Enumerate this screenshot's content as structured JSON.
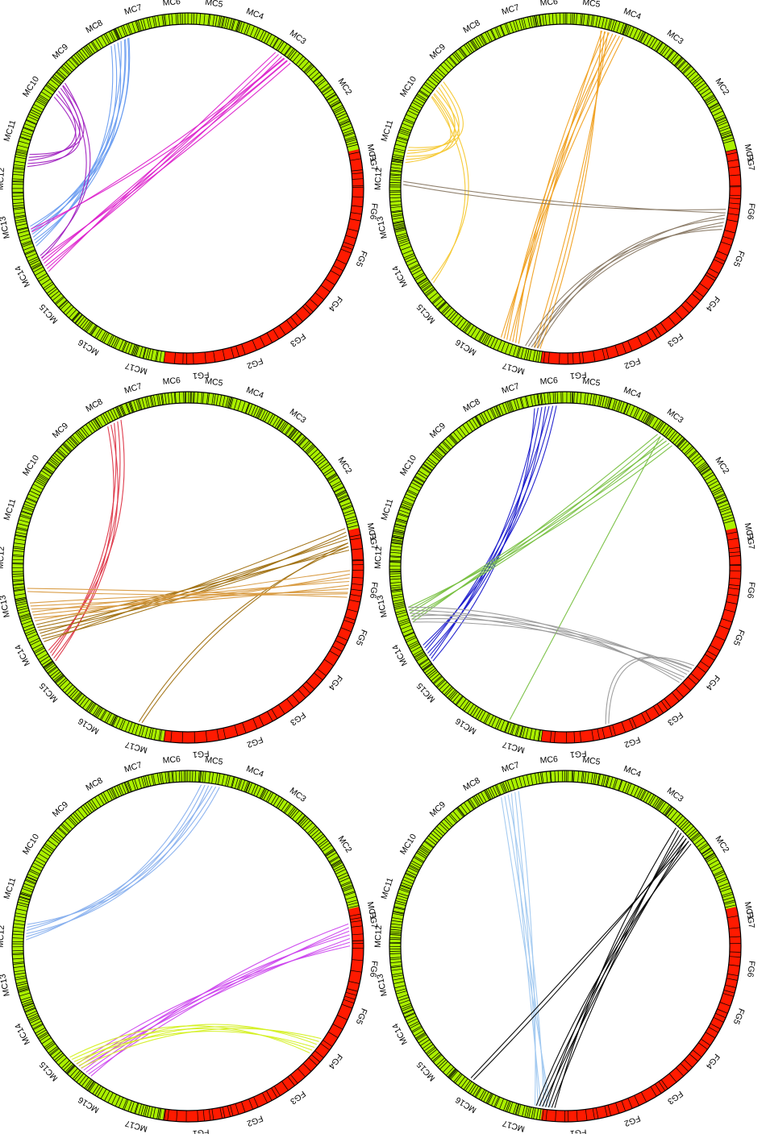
{
  "chromosomes": {
    "mc": [
      "MC1",
      "MC2",
      "MC3",
      "MC4",
      "MC5",
      "MC6",
      "MC7",
      "MC8",
      "MC9",
      "MC10",
      "MC11",
      "MC12",
      "MC13",
      "MC14",
      "MC15",
      "MC16",
      "MC17"
    ],
    "fg": [
      "FG1",
      "FG2",
      "FG3",
      "FG4",
      "FG5",
      "FG6",
      "FG7"
    ]
  },
  "colors": {
    "mc_segment": "#aaf000",
    "fg_segment": "#ff1a00",
    "tick": "#000000",
    "ring_outline": "#000000"
  },
  "panels": [
    {
      "id": "panel-1",
      "links": [
        {
          "color": "#6a9df0",
          "from": 115,
          "to": 198,
          "n": 6
        },
        {
          "color": "#6a9df0",
          "from": 112,
          "to": 194,
          "n": 2
        },
        {
          "color": "#dd22cc",
          "from": 54,
          "to": 208,
          "n": 6
        },
        {
          "color": "#dd22cc",
          "from": 53,
          "to": 195,
          "n": 2
        },
        {
          "color": "#a020c0",
          "from": 143,
          "to": 170,
          "n": 5
        },
        {
          "color": "#a020c0",
          "from": 140,
          "to": 205,
          "n": 2
        }
      ]
    },
    {
      "id": "panel-2",
      "links": [
        {
          "color": "#f0a020",
          "from": 73,
          "to": 250,
          "n": 7
        },
        {
          "color": "#f0a020",
          "from": 76,
          "to": 260,
          "n": 3
        },
        {
          "color": "#f5c830",
          "from": 142,
          "to": 168,
          "n": 6
        },
        {
          "color": "#f5c830",
          "from": 145,
          "to": 215,
          "n": 2
        },
        {
          "color": "#8a7a66",
          "from": 348,
          "to": 258,
          "n": 5
        },
        {
          "color": "#8a7a66",
          "from": 352,
          "to": 178,
          "n": 2
        }
      ]
    },
    {
      "id": "panel-3",
      "links": [
        {
          "color": "#dd3344",
          "from": 117,
          "to": 213,
          "n": 5
        },
        {
          "color": "#a07010",
          "from": 10,
          "to": 204,
          "n": 7
        },
        {
          "color": "#a07010",
          "from": 8,
          "to": 253,
          "n": 2
        },
        {
          "color": "#d89a40",
          "from": 355,
          "to": 196,
          "n": 7
        },
        {
          "color": "#d89a40",
          "from": 350,
          "to": 188,
          "n": 2
        }
      ]
    },
    {
      "id": "panel-4",
      "links": [
        {
          "color": "#1a1acc",
          "from": 97,
          "to": 212,
          "n": 7
        },
        {
          "color": "#77c040",
          "from": 52,
          "to": 197,
          "n": 6
        },
        {
          "color": "#77c040",
          "from": 54,
          "to": 250,
          "n": 1
        },
        {
          "color": "#999999",
          "from": 318,
          "to": 197,
          "n": 6
        },
        {
          "color": "#999999",
          "from": 322,
          "to": 285,
          "n": 2
        }
      ]
    },
    {
      "id": "panel-5",
      "links": [
        {
          "color": "#88b0ee",
          "from": 82,
          "to": 175,
          "n": 6
        },
        {
          "color": "#cc44ee",
          "from": 4,
          "to": 230,
          "n": 7
        },
        {
          "color": "#d4f020",
          "from": 322,
          "to": 226,
          "n": 6
        }
      ]
    },
    {
      "id": "panel-6",
      "links": [
        {
          "color": "#a0c8f0",
          "from": 110,
          "to": 262,
          "n": 6
        },
        {
          "color": "#000000",
          "from": 43,
          "to": 263,
          "n": 7
        },
        {
          "color": "#000000",
          "from": 41,
          "to": 235,
          "n": 2
        }
      ]
    }
  ]
}
